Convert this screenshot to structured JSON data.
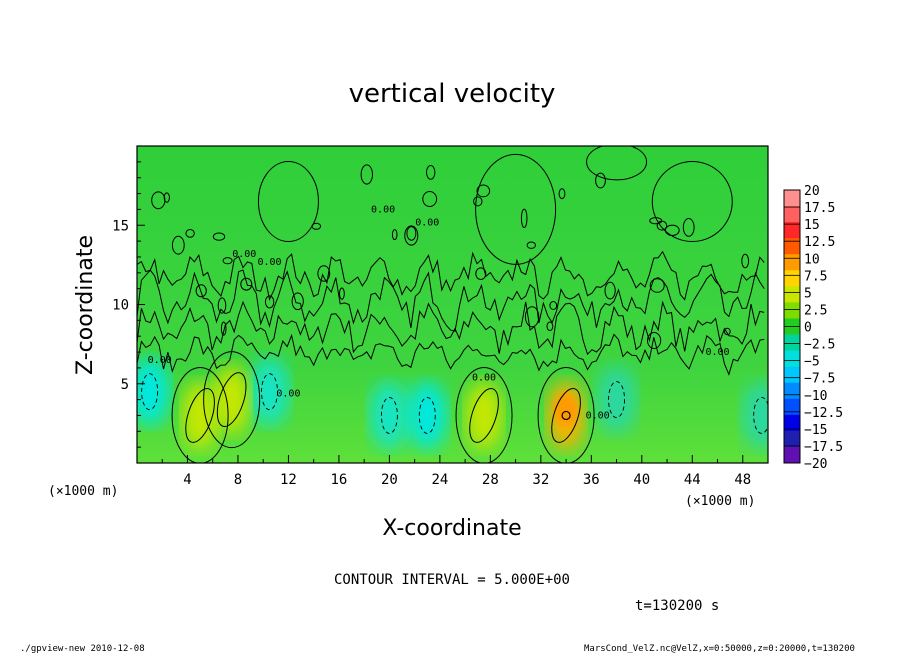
{
  "chart_data": {
    "type": "heatmap",
    "title": "vertical velocity",
    "xlabel": "X-coordinate",
    "ylabel": "Z-coordinate",
    "x_unit_left": "(×1000 m)",
    "x_unit_right": "(×1000 m)",
    "xlim": [
      0,
      50
    ],
    "ylim": [
      0,
      20
    ],
    "x_ticks": [
      4,
      8,
      12,
      16,
      20,
      24,
      28,
      32,
      36,
      40,
      44,
      48
    ],
    "y_ticks": [
      5,
      10,
      15
    ],
    "colorbar": {
      "labels": [
        "20",
        "17.5",
        "15",
        "12.5",
        "10",
        "7.5",
        "5",
        "2.5",
        "0",
        "−2.5",
        "−5",
        "−7.5",
        "−10",
        "−12.5",
        "−15",
        "−17.5",
        "−20"
      ],
      "colors": [
        "#ff9090",
        "#ff6060",
        "#ff2828",
        "#ff5a00",
        "#ff9a00",
        "#ffd400",
        "#c8e600",
        "#7fdc00",
        "#22cc22",
        "#00d49c",
        "#00e0dc",
        "#00c8ff",
        "#008cff",
        "#0050ff",
        "#0000e8",
        "#2020b0",
        "#6010b0"
      ]
    },
    "contour_label": "0.00",
    "updrafts": [
      {
        "x": 5,
        "z": 3,
        "peak": 5
      },
      {
        "x": 7.5,
        "z": 4,
        "peak": 5
      },
      {
        "x": 27.5,
        "z": 3,
        "peak": 5
      },
      {
        "x": 34,
        "z": 3,
        "peak": 8.5
      }
    ],
    "downdrafts": [
      {
        "x": 1,
        "z": 4.5,
        "peak": -6
      },
      {
        "x": 10.5,
        "z": 4.5,
        "peak": -5
      },
      {
        "x": 20,
        "z": 3,
        "peak": -5.5
      },
      {
        "x": 23,
        "z": 3,
        "peak": -6
      },
      {
        "x": 38,
        "z": 4,
        "peak": -3.5
      },
      {
        "x": 49.5,
        "z": 3,
        "peak": -4
      }
    ]
  },
  "footer": {
    "contour_interval": "CONTOUR INTERVAL = 5.000E+00",
    "time": "t=130200 s",
    "program": "./gpview-new   2010-12-08",
    "source": "MarsCond_VelZ.nc@VelZ,x=0:50000,z=0:20000,t=130200"
  }
}
